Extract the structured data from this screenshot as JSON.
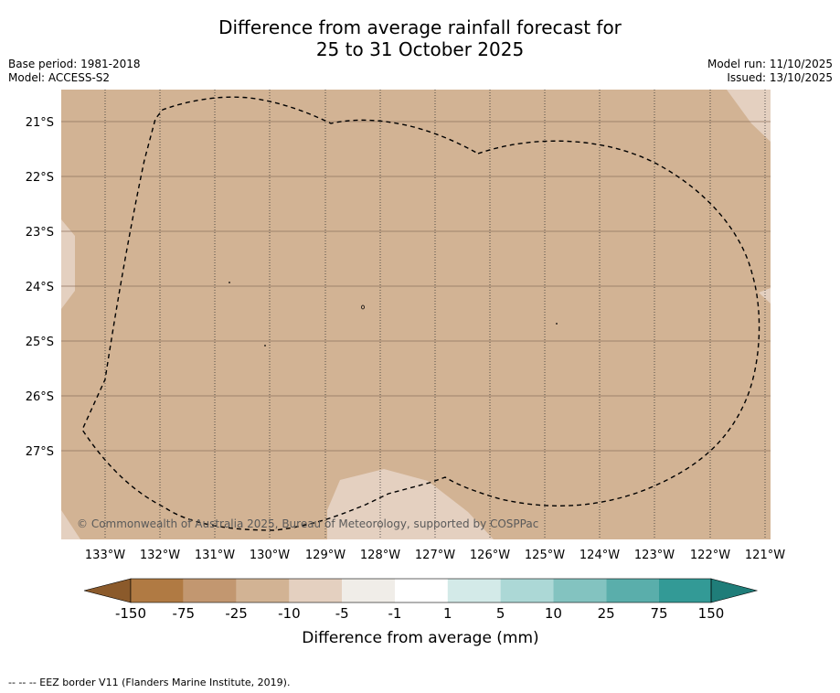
{
  "title_line1": "Difference from average rainfall forecast for",
  "title_line2": "25 to 31 October 2025",
  "base_period": "Base period: 1981-2018",
  "model": "Model: ACCESS-S2",
  "model_run": "Model run: 11/10/2025",
  "issued": "Issued: 13/10/2025",
  "copyright": "© Commonwealth of Australia 2025, Bureau of Meteorology, supported by COSPPac",
  "footer": "-- -- -- EEZ border V11 (Flanders Marine Institute, 2019).",
  "map": {
    "lon_labels": [
      "133°W",
      "132°W",
      "131°W",
      "130°W",
      "129°W",
      "128°W",
      "127°W",
      "126°W",
      "125°W",
      "124°W",
      "123°W",
      "122°W",
      "121°W"
    ],
    "lat_labels": [
      "21°S",
      "22°S",
      "23°S",
      "24°S",
      "25°S",
      "26°S",
      "27°S"
    ],
    "colors": {
      "dry_moderate": "#d2b394",
      "dry_slight": "#e4d0c0"
    }
  },
  "colorbar": {
    "title": "Difference from average (mm)",
    "tick_labels": [
      "-150",
      "-75",
      "-25",
      "-10",
      "-5",
      "-1",
      "1",
      "5",
      "10",
      "25",
      "75",
      "150"
    ],
    "colors": [
      "#8b5a2b",
      "#b07a43",
      "#c29770",
      "#d2b394",
      "#e4d0c0",
      "#f0ede8",
      "#ffffff",
      "#d3eae8",
      "#acd8d6",
      "#83c3c0",
      "#5aaeab",
      "#339a96",
      "#1f7d79"
    ]
  }
}
